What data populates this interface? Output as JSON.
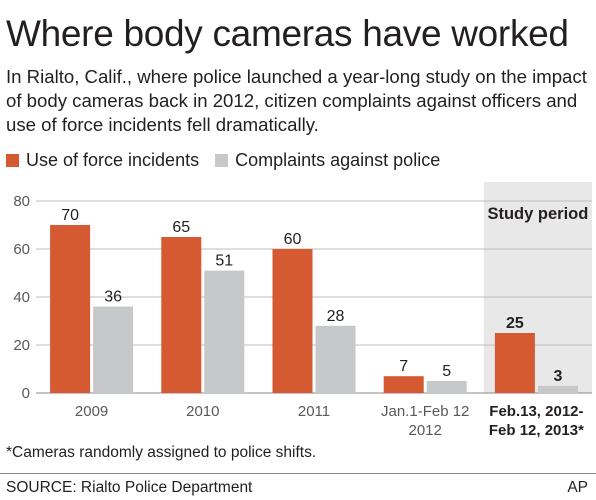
{
  "header": {
    "title": "Where body cameras have worked",
    "subtitle": "In Rialto, Calif., where police launched a year-long study on the impact of body cameras back in 2012, citizen complaints against officers and use of force incidents fell dramatically."
  },
  "legend": {
    "items": [
      {
        "label": "Use of force incidents",
        "color": "#d65a31"
      },
      {
        "label": "Complaints against police",
        "color": "#c7c8ca"
      }
    ]
  },
  "chart_data": {
    "type": "bar",
    "categories": [
      "2009",
      "2010",
      "2011",
      "Jan.1-Feb 12\n2012",
      "Feb.13, 2012-\nFeb 12, 2013*"
    ],
    "series": [
      {
        "name": "Use of force incidents",
        "values": [
          70,
          65,
          60,
          7,
          25
        ],
        "color": "#d65a31"
      },
      {
        "name": "Complaints against police",
        "values": [
          36,
          51,
          28,
          5,
          3
        ],
        "color": "#c7c8ca"
      }
    ],
    "yticks": [
      0,
      20,
      40,
      60,
      80
    ],
    "ylim": [
      0,
      80
    ],
    "grid": "horizontal",
    "highlight": {
      "category_index": 4,
      "label": "Study period",
      "color": "#e8e8e9"
    },
    "bold_category_indices": [
      4
    ]
  },
  "footer": {
    "note": "*Cameras randomly assigned to police shifts.",
    "source": "SOURCE: Rialto Police Department",
    "credit": "AP"
  }
}
